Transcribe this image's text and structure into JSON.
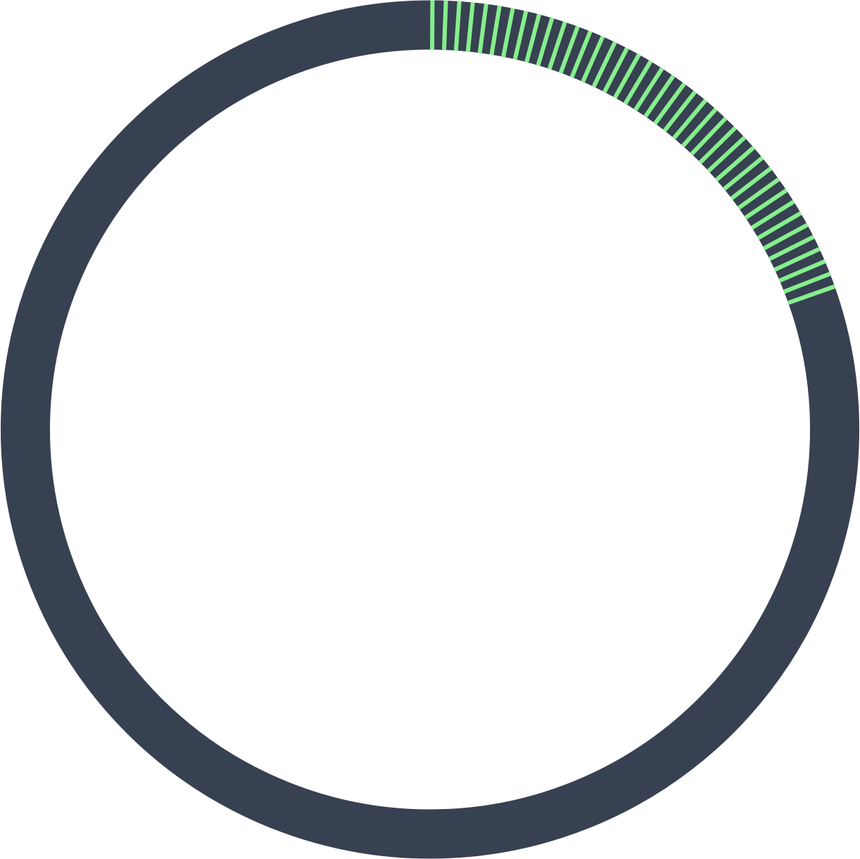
{
  "progress_ring": {
    "progress_fraction": 0.2,
    "track_color": "#374151",
    "fill_color": "#374151",
    "stripe_color": "#86EF8C",
    "stripe_count": 40
  }
}
